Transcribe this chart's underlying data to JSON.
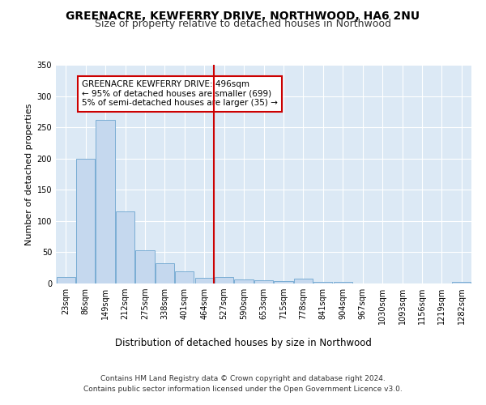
{
  "title1": "GREENACRE, KEWFERRY DRIVE, NORTHWOOD, HA6 2NU",
  "title2": "Size of property relative to detached houses in Northwood",
  "xlabel": "Distribution of detached houses by size in Northwood",
  "ylabel": "Number of detached properties",
  "categories": [
    "23sqm",
    "86sqm",
    "149sqm",
    "212sqm",
    "275sqm",
    "338sqm",
    "401sqm",
    "464sqm",
    "527sqm",
    "590sqm",
    "653sqm",
    "715sqm",
    "778sqm",
    "841sqm",
    "904sqm",
    "967sqm",
    "1030sqm",
    "1093sqm",
    "1156sqm",
    "1219sqm",
    "1282sqm"
  ],
  "values": [
    10,
    200,
    262,
    116,
    53,
    33,
    20,
    9,
    10,
    7,
    5,
    4,
    8,
    3,
    3,
    0,
    0,
    0,
    0,
    0,
    3
  ],
  "bar_color": "#c5d8ee",
  "bar_edge_color": "#7aadd4",
  "vline_x_index": 7.5,
  "vline_color": "#cc0000",
  "annotation_text": "GREENACRE KEWFERRY DRIVE: 496sqm\n← 95% of detached houses are smaller (699)\n5% of semi-detached houses are larger (35) →",
  "annotation_box_color": "#ffffff",
  "annotation_box_edge": "#cc0000",
  "bg_color": "#dce9f5",
  "footer_line1": "Contains HM Land Registry data © Crown copyright and database right 2024.",
  "footer_line2": "Contains public sector information licensed under the Open Government Licence v3.0.",
  "ylim": [
    0,
    350
  ],
  "yticks": [
    0,
    50,
    100,
    150,
    200,
    250,
    300,
    350
  ],
  "grid_color": "#ffffff",
  "title1_fontsize": 10,
  "title2_fontsize": 9,
  "xlabel_fontsize": 8.5,
  "ylabel_fontsize": 8,
  "tick_fontsize": 7,
  "annotation_fontsize": 7.5,
  "footer_fontsize": 6.5
}
